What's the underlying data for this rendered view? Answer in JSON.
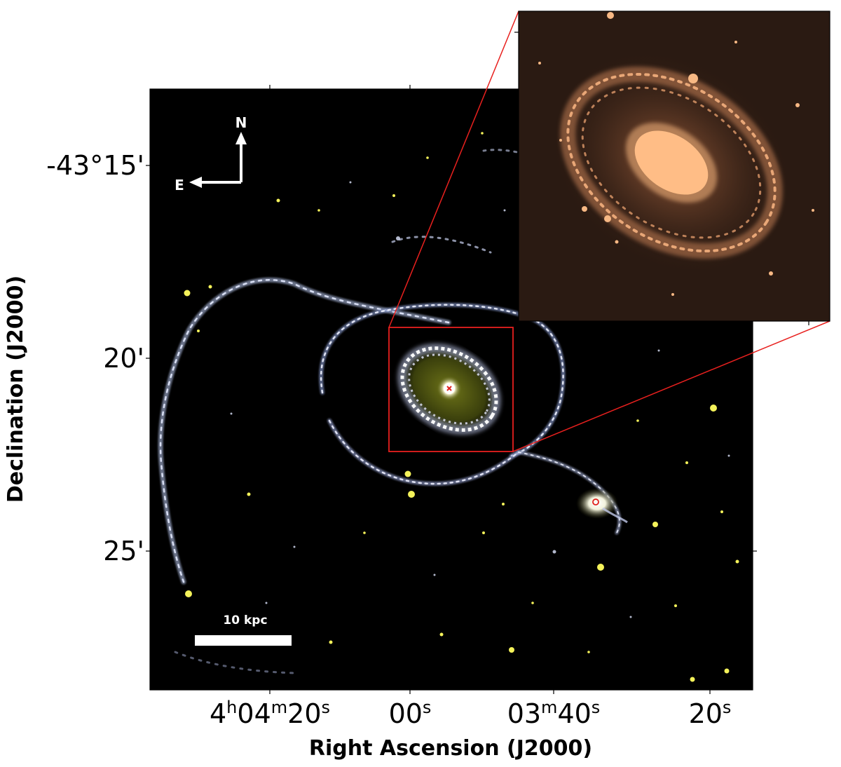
{
  "axes": {
    "xlabel": "Right Ascension (J2000)",
    "ylabel": "Declination (J2000)",
    "x_ticks": [
      {
        "main": "4",
        "parts": [
          [
            "h",
            "sup"
          ],
          [
            "04",
            ""
          ],
          [
            "m",
            "sup"
          ],
          [
            "20",
            ""
          ],
          [
            "s",
            "sup"
          ]
        ]
      },
      {
        "main": "00",
        "parts": [
          [
            "s",
            "sup"
          ]
        ]
      },
      {
        "main": "03",
        "parts": [
          [
            "m",
            "sup"
          ],
          [
            "40",
            ""
          ],
          [
            "s",
            "sup"
          ]
        ]
      },
      {
        "main": "20",
        "parts": [
          [
            "s",
            "sup"
          ]
        ]
      }
    ],
    "y_ticks": [
      "-43°15'",
      "20'",
      "25'"
    ]
  },
  "compass": {
    "north": "N",
    "east": "E"
  },
  "scale_bar": {
    "label": "10 kpc"
  },
  "markers": {
    "main_nucleus": "x",
    "companion": "o"
  },
  "colors": {
    "background_sky": "#000000",
    "arm_knots": "#e8ecff",
    "foreground_stars": "#f4f25a",
    "zoom_box": "#e8201e",
    "inset_glow": "#f6b67e",
    "inset_bg": "#2a1a12"
  }
}
